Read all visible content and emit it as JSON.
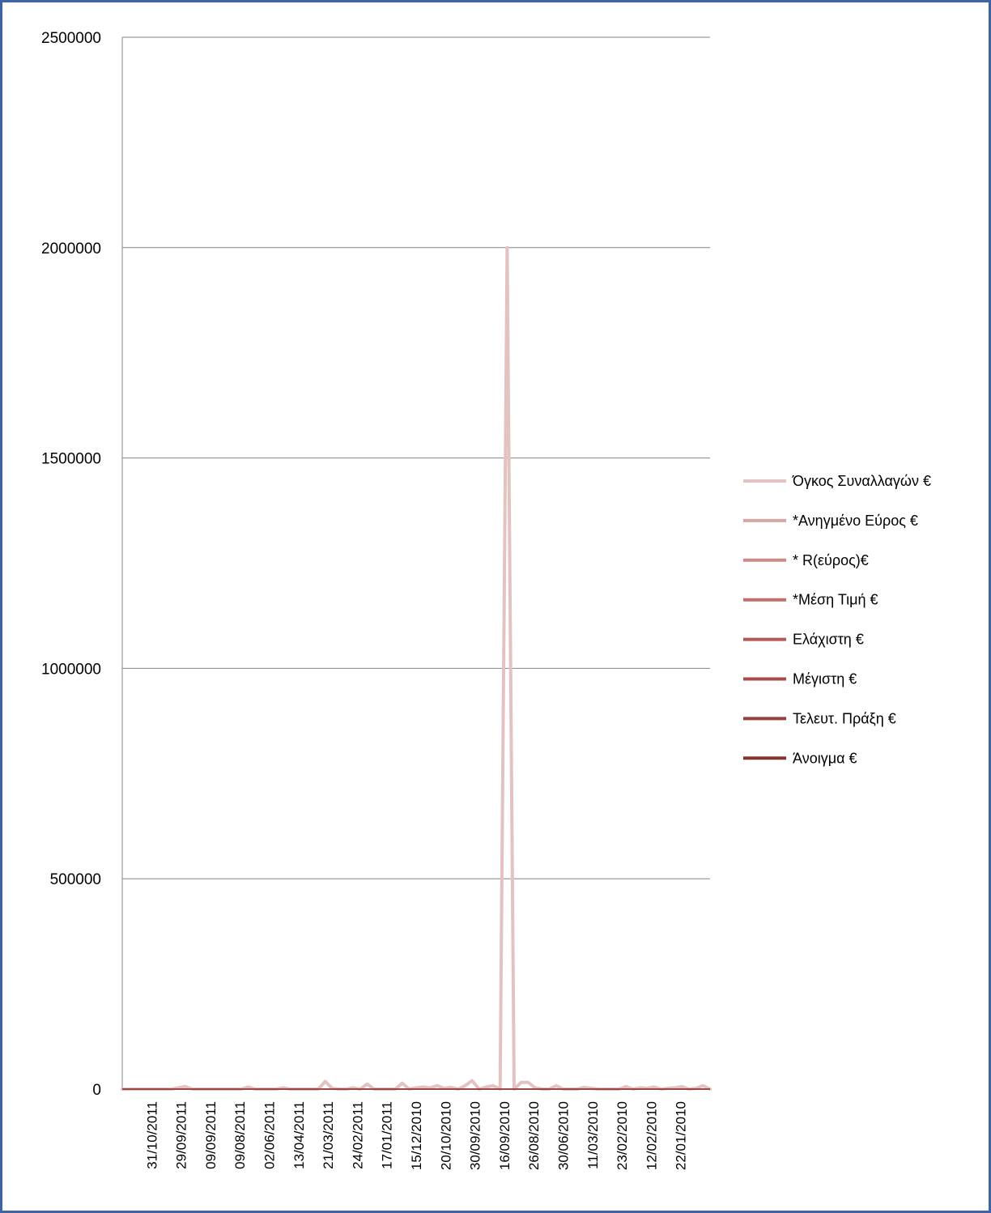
{
  "chart_data": {
    "type": "line",
    "title": "",
    "xlabel": "",
    "ylabel": "",
    "ylim": [
      0,
      2500000
    ],
    "y_ticks": [
      "0",
      "500000",
      "1000000",
      "1500000",
      "2000000",
      "2500000"
    ],
    "x_tick_labels": [
      "31/10/2011",
      "29/09/2011",
      "09/09/2011",
      "09/08/2011",
      "02/06/2011",
      "13/04/2011",
      "21/03/2011",
      "24/02/2011",
      "17/01/2011",
      "15/12/2010",
      "20/10/2010",
      "30/09/2010",
      "16/09/2010",
      "26/08/2010",
      "30/06/2010",
      "11/03/2010",
      "23/02/2010",
      "12/02/2010",
      "22/01/2010"
    ],
    "grid": true,
    "legend_position": "right",
    "point_count": 85,
    "series": [
      {
        "name": "Όγκος Συναλλαγών €",
        "color": "#e3c3c1",
        "values": [
          0,
          0,
          0,
          0,
          0,
          0,
          0,
          0,
          3000,
          6000,
          0,
          0,
          0,
          0,
          0,
          0,
          0,
          0,
          5000,
          0,
          0,
          0,
          0,
          3000,
          0,
          0,
          0,
          0,
          0,
          18000,
          2000,
          0,
          0,
          3000,
          0,
          12000,
          0,
          0,
          0,
          0,
          14000,
          0,
          3000,
          5000,
          3000,
          8000,
          2000,
          4000,
          0,
          8000,
          20000,
          0,
          5000,
          8000,
          0,
          2000000,
          0,
          16000,
          16000,
          3000,
          0,
          0,
          8000,
          0,
          0,
          0,
          4000,
          2000,
          0,
          0,
          0,
          0,
          6000,
          0,
          3000,
          2000,
          5000,
          0,
          2000,
          3000,
          6000,
          0,
          2000,
          8000,
          0
        ]
      },
      {
        "name": "*Ανηγμένο  Εύρος €",
        "color": "#d6a6a4",
        "values": []
      },
      {
        "name": "* R(εύρος)€",
        "color": "#c98b88",
        "values": []
      },
      {
        "name": "*Μέση Τιμή €",
        "color": "#bf6f6c",
        "values": []
      },
      {
        "name": "Ελάχιστη €",
        "color": "#b35955",
        "values": []
      },
      {
        "name": "Μέγιστη €",
        "color": "#a94b48",
        "values": []
      },
      {
        "name": "Τελευτ. Πράξη €",
        "color": "#98403d",
        "values": []
      },
      {
        "name": "Άνοιγμα €",
        "color": "#853330",
        "values": []
      }
    ]
  }
}
